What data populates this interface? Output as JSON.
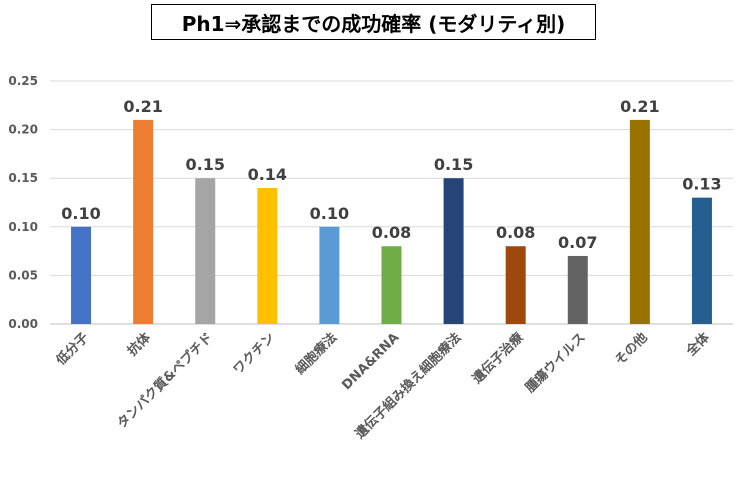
{
  "chart_data": {
    "type": "bar",
    "title": "Ph1⇒承認までの成功確率 (モダリティ別)",
    "categories": [
      "低分子",
      "抗体",
      "タンパク質&ペプチド",
      "ワクチン",
      "細胞療法",
      "DNA&RNA",
      "遺伝子組み換え細胞療法",
      "遺伝子治療",
      "腫瘍ウイルス",
      "その他",
      "全体"
    ],
    "values": [
      0.1,
      0.21,
      0.15,
      0.14,
      0.1,
      0.08,
      0.15,
      0.08,
      0.07,
      0.21,
      0.13
    ],
    "data_labels": [
      "0.10",
      "0.21",
      "0.15",
      "0.14",
      "0.10",
      "0.08",
      "0.15",
      "0.08",
      "0.07",
      "0.21",
      "0.13"
    ],
    "colors": [
      "#4472C4",
      "#ED7D31",
      "#A5A5A5",
      "#FFC000",
      "#5B9BD5",
      "#70AD47",
      "#264478",
      "#9E480E",
      "#636363",
      "#997300",
      "#255E91"
    ],
    "ylim": [
      0,
      0.25
    ],
    "yticks": [
      "0.00",
      "0.05",
      "0.10",
      "0.15",
      "0.20",
      "0.25"
    ],
    "grid": true,
    "xlabel": "",
    "ylabel": ""
  }
}
